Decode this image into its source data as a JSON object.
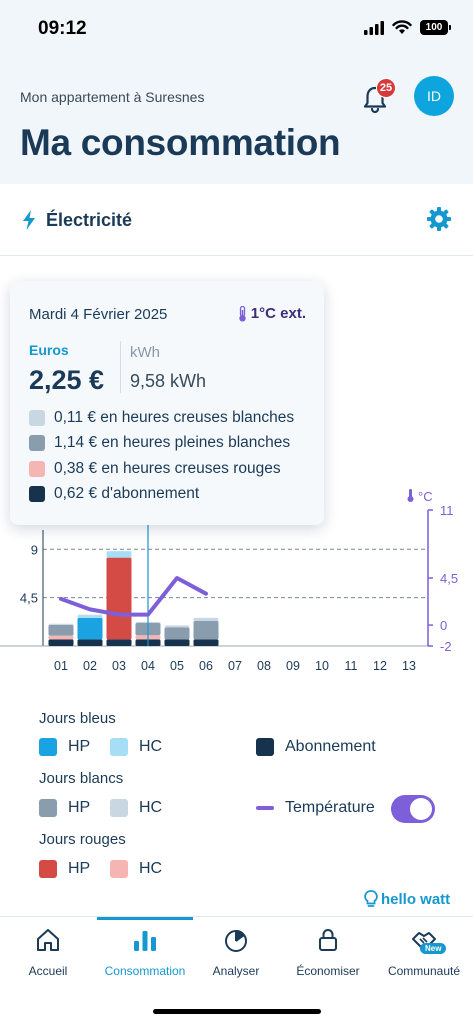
{
  "status_bar": {
    "time": "09:12",
    "battery": "100"
  },
  "header": {
    "subtitle": "Mon appartement à Suresnes",
    "title": "Ma consommation",
    "notification_count": "25",
    "avatar_initials": "ID"
  },
  "energy": {
    "label": "Électricité"
  },
  "tooltip": {
    "date": "Mardi 4 Février 2025",
    "temperature": "1°C ext.",
    "euros_label": "Euros",
    "euros_value": "2,25 €",
    "kwh_label": "kWh",
    "kwh_value": "9,58 kWh",
    "rows": [
      {
        "text": "0,11 € en heures creuses blanches",
        "color": "#c9d7e3"
      },
      {
        "text": "1,14 € en heures pleines blanches",
        "color": "#8a9daf"
      },
      {
        "text": "0,38 € en heures creuses rouges",
        "color": "#f4b5b3"
      },
      {
        "text": "0,62 € d'abonnement",
        "color": "#16324d"
      }
    ]
  },
  "chart_data": {
    "type": "bar",
    "y_ticks": [
      "9",
      "4,5"
    ],
    "y_range": [
      0,
      11
    ],
    "temp_unit_label": "°C",
    "temp_ticks": [
      "11",
      "4,5",
      "0",
      "-2"
    ],
    "temp_range": [
      -2,
      11
    ],
    "categories": [
      "01",
      "02",
      "03",
      "04",
      "05",
      "06",
      "07",
      "08",
      "09",
      "10",
      "11",
      "12",
      "13"
    ],
    "series": [
      {
        "name": "Abonnement",
        "color": "#16324d",
        "values": [
          0.62,
          0.62,
          0.62,
          0.62,
          0.62,
          0.62,
          0,
          0,
          0,
          0,
          0,
          0,
          0
        ]
      },
      {
        "name": "HC rouges",
        "color": "#f4b5b3",
        "values": [
          0.35,
          0,
          0,
          0.38,
          0,
          0,
          0,
          0,
          0,
          0,
          0,
          0,
          0
        ]
      },
      {
        "name": "HP rouges",
        "color": "#d44a45",
        "values": [
          0,
          0,
          7.6,
          0,
          0,
          0,
          0,
          0,
          0,
          0,
          0,
          0,
          0
        ]
      },
      {
        "name": "HP blancs",
        "color": "#8a9daf",
        "values": [
          1.0,
          0,
          0,
          1.14,
          1.1,
          1.7,
          0,
          0,
          0,
          0,
          0,
          0,
          0
        ]
      },
      {
        "name": "HP bleus",
        "color": "#1aa3e0",
        "values": [
          0,
          2.0,
          0,
          0,
          0,
          0,
          0,
          0,
          0,
          0,
          0,
          0,
          0
        ]
      },
      {
        "name": "HC bleus",
        "color": "#a6def5",
        "values": [
          0,
          0.2,
          0.6,
          0,
          0,
          0,
          0,
          0,
          0,
          0,
          0,
          0,
          0
        ]
      },
      {
        "name": "HC blancs",
        "color": "#c9d7e3",
        "values": [
          0.1,
          0.1,
          0,
          0.11,
          0.2,
          0.3,
          0,
          0,
          0,
          0,
          0,
          0,
          0
        ]
      }
    ],
    "temperature": {
      "name": "Température",
      "color": "#7d5fd9",
      "values": [
        2.5,
        1.5,
        1.0,
        1.0,
        4.5,
        3.0
      ]
    },
    "dashed_lines": [
      9,
      4.5
    ],
    "selected_index": 3
  },
  "legend": {
    "groups": [
      "Jours bleus",
      "Jours blancs",
      "Jours rouges"
    ],
    "hp": "HP",
    "hc": "HC",
    "abonnement": "Abonnement",
    "temperature": "Température",
    "colors": {
      "bleu_hp": "#1aa3e0",
      "bleu_hc": "#a6def5",
      "blanc_hp": "#8a9daf",
      "blanc_hc": "#c9d7e3",
      "rouge_hp": "#d44a45",
      "rouge_hc": "#f4b5b3",
      "abonnement": "#16324d",
      "temperature": "#7d5fd9"
    },
    "temperature_toggle": "on"
  },
  "brand": {
    "name": "hello watt"
  },
  "tabs": [
    {
      "label": "Accueil",
      "icon": "home-icon"
    },
    {
      "label": "Consommation",
      "icon": "bar-chart-icon",
      "active": true
    },
    {
      "label": "Analyser",
      "icon": "pie-chart-icon"
    },
    {
      "label": "Économiser",
      "icon": "lock-icon"
    },
    {
      "label": "Communauté",
      "icon": "handshake-icon",
      "badge": "New"
    }
  ]
}
